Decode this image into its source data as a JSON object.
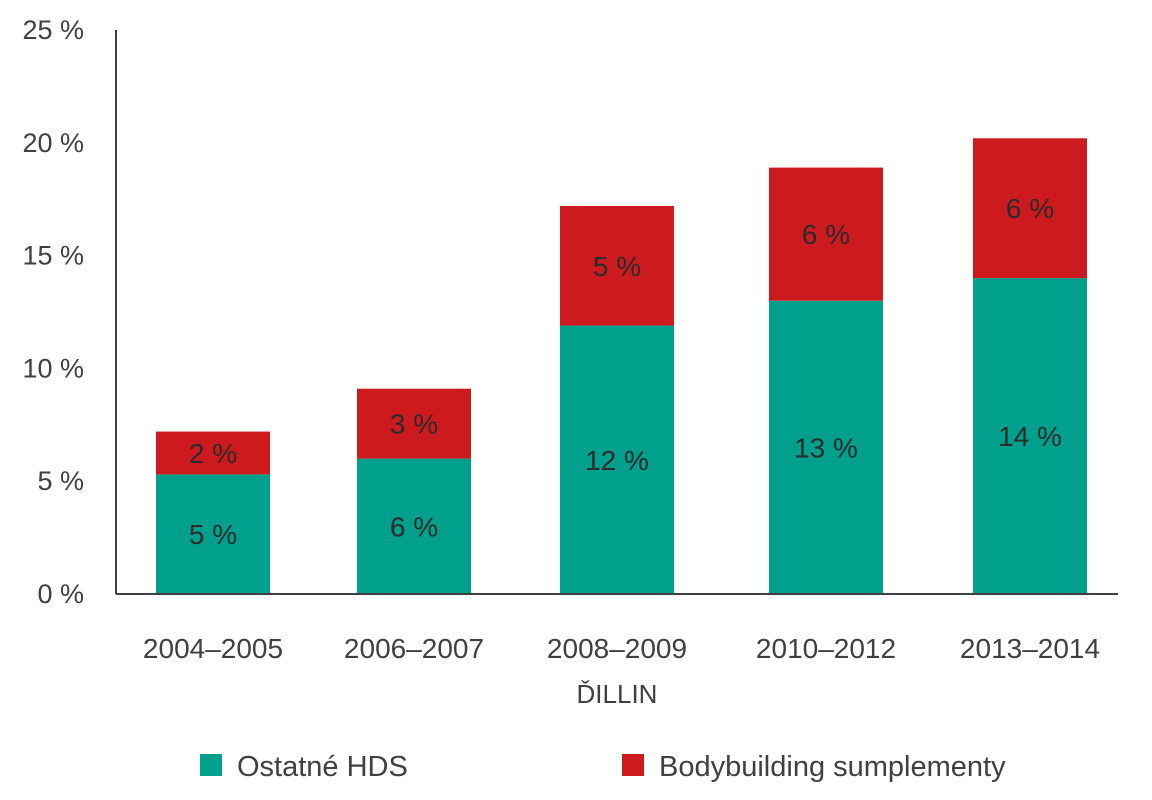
{
  "chart_data": {
    "type": "bar",
    "stacked": true,
    "categories": [
      "2004–2005",
      "2006–2007",
      "2008–2009",
      "2010–2012",
      "2013–2014"
    ],
    "series": [
      {
        "name": "Ostatné HDS",
        "color": "#00a08c",
        "values": [
          5.3,
          6.0,
          11.9,
          13.0,
          14.0
        ],
        "labels": [
          "5 %",
          "6 %",
          "12 %",
          "13 %",
          "14 %"
        ]
      },
      {
        "name": "Bodybuilding sumplementy",
        "color": "#cc1a1e",
        "values": [
          1.9,
          3.1,
          5.3,
          5.9,
          6.2
        ],
        "labels": [
          "2 %",
          "3 %",
          "5 %",
          "6 %",
          "6 %"
        ]
      }
    ],
    "ylim": [
      0,
      25
    ],
    "yticks": [
      0,
      5,
      10,
      15,
      20,
      25
    ],
    "ytick_labels": [
      "0 %",
      "5 %",
      "10 %",
      "15 %",
      "20 %",
      "25 %"
    ],
    "xlabel": "ĎILLIN",
    "ylabel": "",
    "title": "",
    "grid": false,
    "legend_position": "bottom"
  }
}
